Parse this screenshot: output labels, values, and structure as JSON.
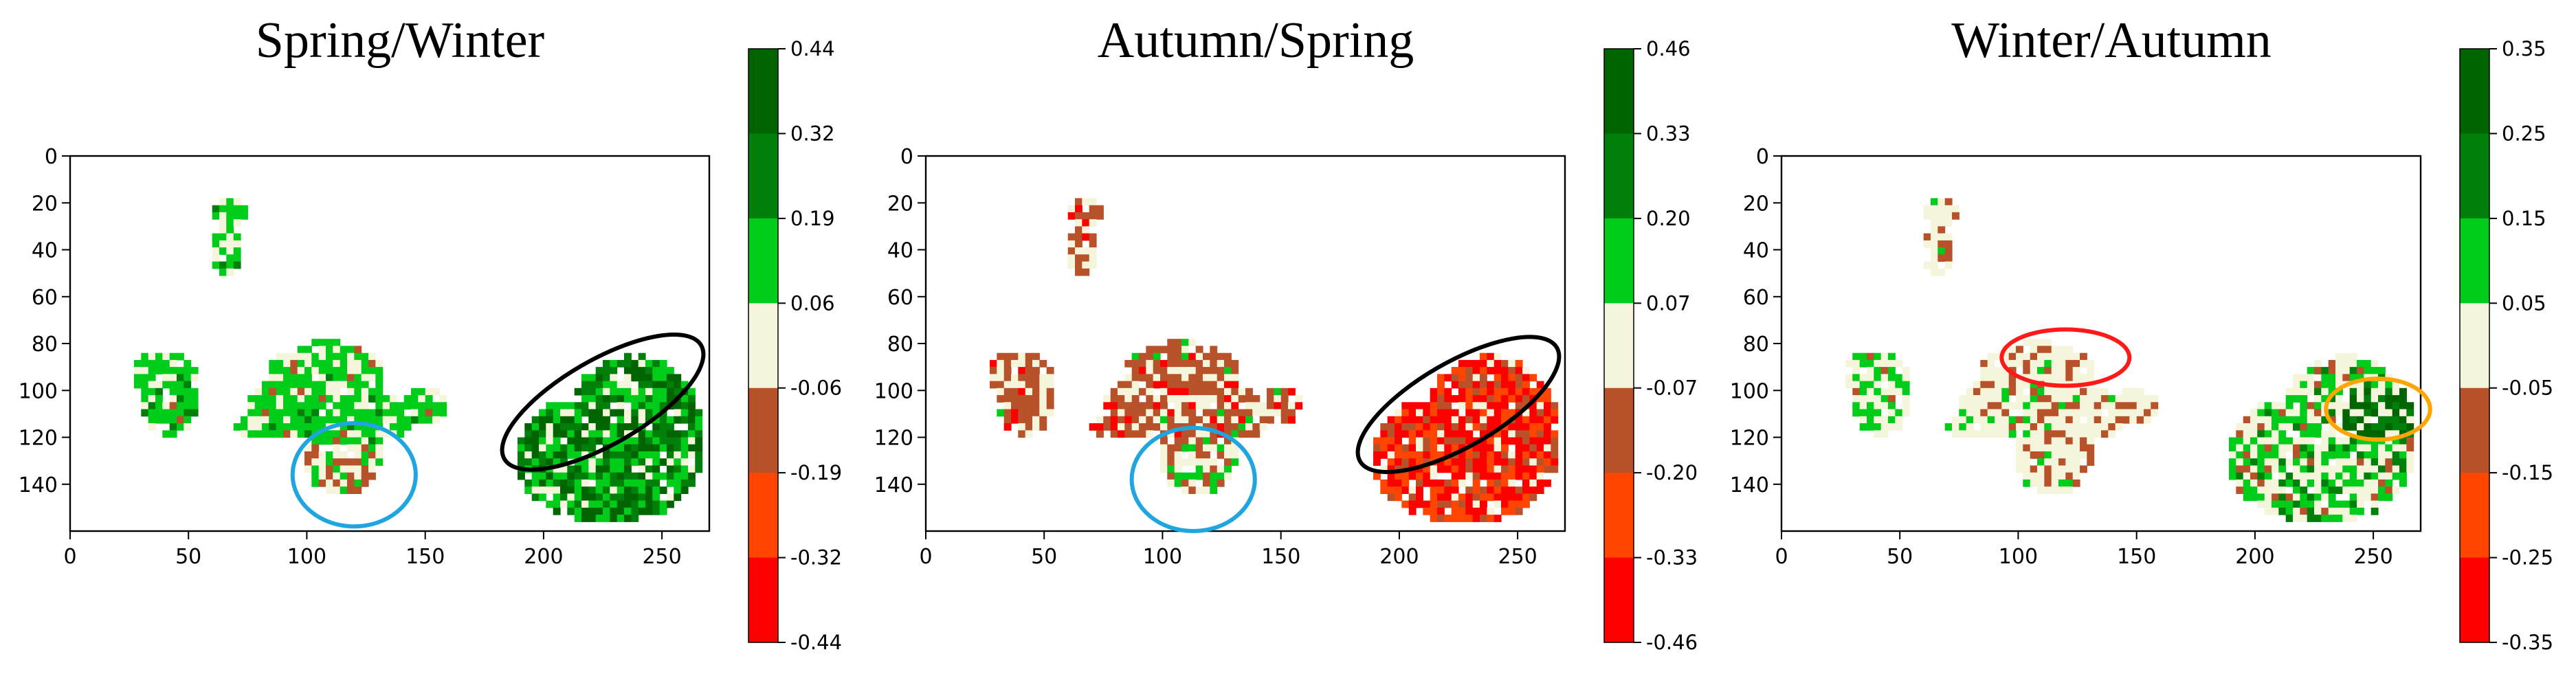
{
  "chart_data": [
    {
      "type": "heatmap",
      "title": "Spring/Winter",
      "xlim": [
        0,
        270
      ],
      "ylim": [
        0,
        160
      ],
      "y_inverted": true,
      "x_ticks": [
        "0",
        "50",
        "100",
        "150",
        "200",
        "250"
      ],
      "y_ticks": [
        "0",
        "20",
        "40",
        "60",
        "80",
        "100",
        "120",
        "140"
      ],
      "colorbar": {
        "min": -0.44,
        "max": 0.44,
        "ticks": [
          "0.44",
          "0.32",
          "0.19",
          "0.06",
          "-0.06",
          "-0.19",
          "-0.32",
          "-0.44"
        ],
        "colors": [
          "#006400",
          "#00800a",
          "#00cc1a",
          "#f5f5dc",
          "#b7522a",
          "#ff4500",
          "#ff0000"
        ]
      },
      "annotations": [
        {
          "shape": "ellipse",
          "color": "#000000",
          "cx": 225,
          "cy": 105,
          "rx": 48,
          "ry": 18,
          "angle_deg": -30
        },
        {
          "shape": "ellipse",
          "color": "#1fa6e0",
          "cx": 120,
          "cy": 136,
          "rx": 26,
          "ry": 22,
          "angle_deg": 0
        }
      ]
    },
    {
      "type": "heatmap",
      "title": "Autumn/Spring",
      "xlim": [
        0,
        270
      ],
      "ylim": [
        0,
        160
      ],
      "y_inverted": true,
      "x_ticks": [
        "0",
        "50",
        "100",
        "150",
        "200",
        "250"
      ],
      "y_ticks": [
        "0",
        "20",
        "40",
        "60",
        "80",
        "100",
        "120",
        "140"
      ],
      "colorbar": {
        "min": -0.46,
        "max": 0.46,
        "ticks": [
          "0.46",
          "0.33",
          "0.20",
          "0.07",
          "-0.07",
          "-0.20",
          "-0.33",
          "-0.46"
        ],
        "colors": [
          "#006400",
          "#00800a",
          "#00cc1a",
          "#f5f5dc",
          "#b7522a",
          "#ff4500",
          "#ff0000"
        ]
      },
      "annotations": [
        {
          "shape": "ellipse",
          "color": "#000000",
          "cx": 225,
          "cy": 106,
          "rx": 48,
          "ry": 18,
          "angle_deg": -30
        },
        {
          "shape": "ellipse",
          "color": "#1fa6e0",
          "cx": 113,
          "cy": 138,
          "rx": 26,
          "ry": 22,
          "angle_deg": 0
        }
      ]
    },
    {
      "type": "heatmap",
      "title": "Winter/Autumn",
      "xlim": [
        0,
        270
      ],
      "ylim": [
        0,
        160
      ],
      "y_inverted": true,
      "x_ticks": [
        "0",
        "50",
        "100",
        "150",
        "200",
        "250"
      ],
      "y_ticks": [
        "0",
        "20",
        "40",
        "60",
        "80",
        "100",
        "120",
        "140"
      ],
      "colorbar": {
        "min": -0.35,
        "max": 0.35,
        "ticks": [
          "0.35",
          "0.25",
          "0.15",
          "0.05",
          "-0.05",
          "-0.15",
          "-0.25",
          "-0.35"
        ],
        "colors": [
          "#006400",
          "#00800a",
          "#00cc1a",
          "#f5f5dc",
          "#b7522a",
          "#ff4500",
          "#ff0000"
        ]
      },
      "annotations": [
        {
          "shape": "ellipse",
          "color": "#ff1a1a",
          "cx": 120,
          "cy": 86,
          "rx": 27,
          "ry": 12,
          "angle_deg": 0
        },
        {
          "shape": "ellipse",
          "color": "#ffa500",
          "cx": 252,
          "cy": 108,
          "rx": 22,
          "ry": 13,
          "angle_deg": 0
        }
      ]
    }
  ]
}
